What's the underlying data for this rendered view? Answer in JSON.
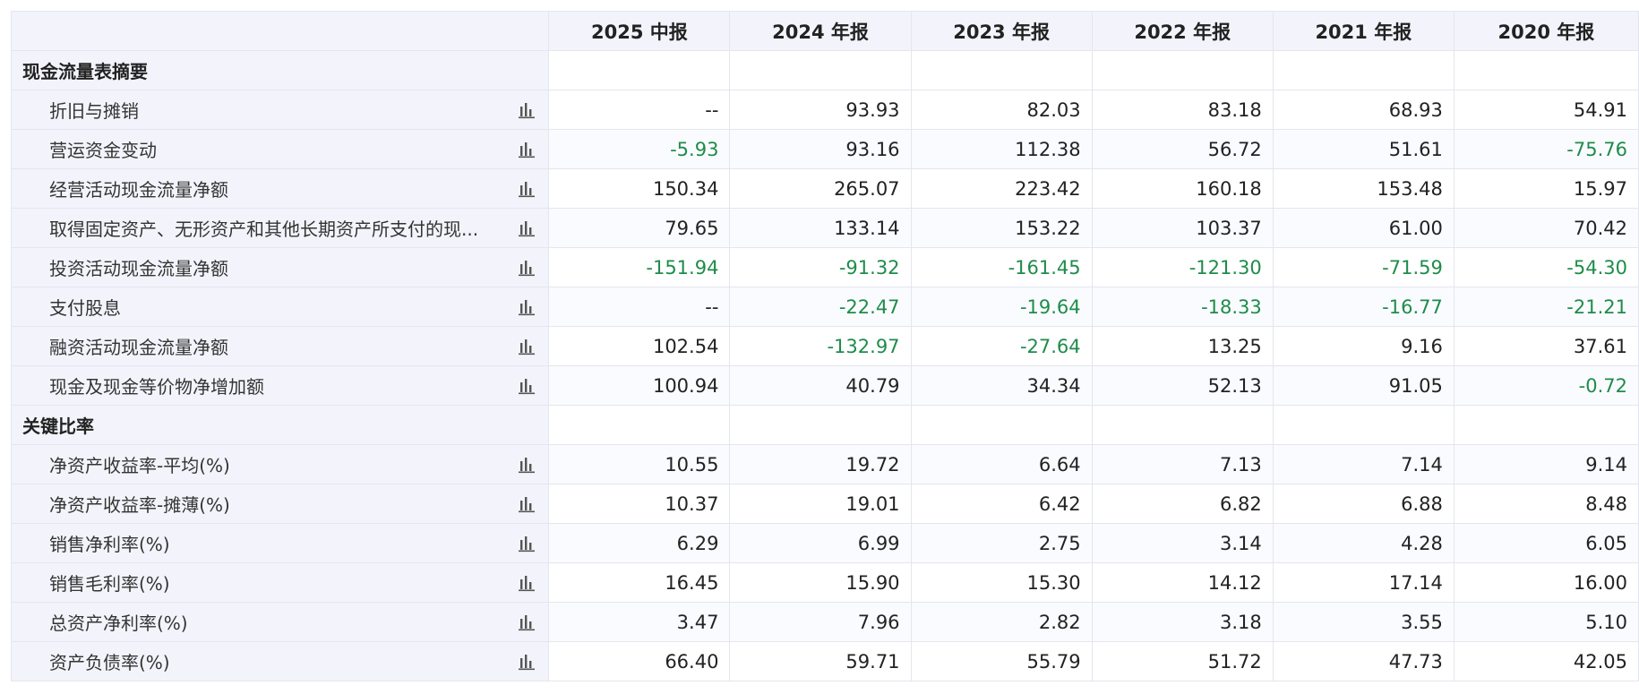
{
  "header": {
    "columns": [
      "2025 中报",
      "2024 年报",
      "2023 年报",
      "2022 年报",
      "2021 年报",
      "2020 年报"
    ]
  },
  "sections": [
    {
      "title": "现金流量表摘要",
      "rows": [
        {
          "label": "折旧与摊销",
          "values": [
            "--",
            "93.93",
            "82.03",
            "83.18",
            "68.93",
            "54.91"
          ]
        },
        {
          "label": "营运资金变动",
          "values": [
            "-5.93",
            "93.16",
            "112.38",
            "56.72",
            "51.61",
            "-75.76"
          ]
        },
        {
          "label": "经营活动现金流量净额",
          "values": [
            "150.34",
            "265.07",
            "223.42",
            "160.18",
            "153.48",
            "15.97"
          ]
        },
        {
          "label": "取得固定资产、无形资产和其他长期资产所支付的现...",
          "values": [
            "79.65",
            "133.14",
            "153.22",
            "103.37",
            "61.00",
            "70.42"
          ]
        },
        {
          "label": "投资活动现金流量净额",
          "values": [
            "-151.94",
            "-91.32",
            "-161.45",
            "-121.30",
            "-71.59",
            "-54.30"
          ]
        },
        {
          "label": "支付股息",
          "values": [
            "--",
            "-22.47",
            "-19.64",
            "-18.33",
            "-16.77",
            "-21.21"
          ]
        },
        {
          "label": "融资活动现金流量净额",
          "values": [
            "102.54",
            "-132.97",
            "-27.64",
            "13.25",
            "9.16",
            "37.61"
          ]
        },
        {
          "label": "现金及现金等价物净增加额",
          "values": [
            "100.94",
            "40.79",
            "34.34",
            "52.13",
            "91.05",
            "-0.72"
          ]
        }
      ]
    },
    {
      "title": "关键比率",
      "rows": [
        {
          "label": "净资产收益率-平均(%)",
          "values": [
            "10.55",
            "19.72",
            "6.64",
            "7.13",
            "7.14",
            "9.14"
          ]
        },
        {
          "label": "净资产收益率-摊薄(%)",
          "values": [
            "10.37",
            "19.01",
            "6.42",
            "6.82",
            "6.88",
            "8.48"
          ]
        },
        {
          "label": "销售净利率(%)",
          "values": [
            "6.29",
            "6.99",
            "2.75",
            "3.14",
            "4.28",
            "6.05"
          ]
        },
        {
          "label": "销售毛利率(%)",
          "values": [
            "16.45",
            "15.90",
            "15.30",
            "14.12",
            "17.14",
            "16.00"
          ]
        },
        {
          "label": "总资产净利率(%)",
          "values": [
            "3.47",
            "7.96",
            "2.82",
            "3.18",
            "3.55",
            "5.10"
          ]
        },
        {
          "label": "资产负债率(%)",
          "values": [
            "66.40",
            "59.71",
            "55.79",
            "51.72",
            "47.73",
            "42.05"
          ]
        }
      ]
    }
  ],
  "icons": {
    "row_chart": "bar-chart-icon"
  },
  "colors": {
    "negative": "#1e8c4a",
    "header_bg": "#f3f4fb",
    "border": "#e3e6ec"
  }
}
